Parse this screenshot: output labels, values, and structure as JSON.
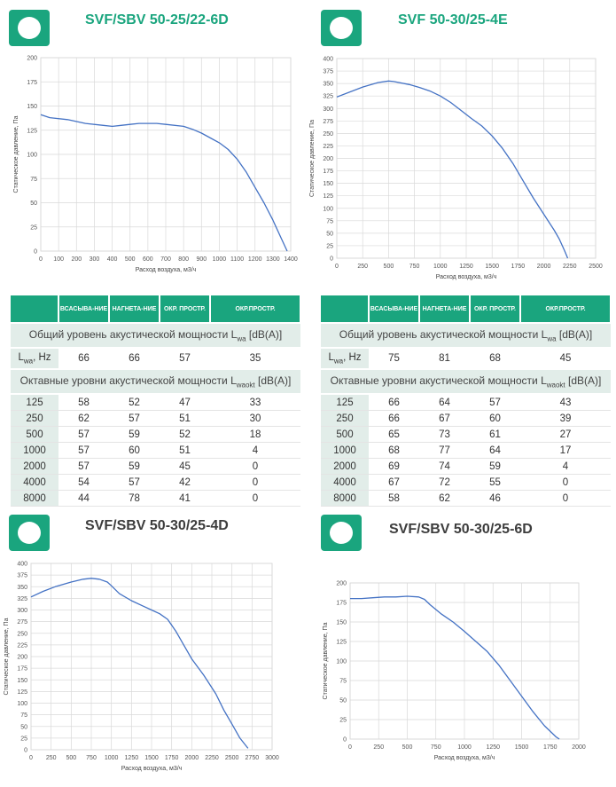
{
  "panels": [
    {
      "title": "SVF/SBV 50-25/22-6D",
      "title_style": "teal",
      "chart_data": {
        "type": "line",
        "xlabel": "Расход воздуха, м3/ч",
        "ylabel": "Статическое давление, Па",
        "xlim": [
          0,
          1400
        ],
        "ylim": [
          0,
          200
        ],
        "xticks": [
          0,
          100,
          200,
          300,
          400,
          500,
          600,
          700,
          800,
          900,
          1000,
          1100,
          1200,
          1300,
          1400
        ],
        "yticks": [
          0,
          25,
          50,
          75,
          100,
          125,
          150,
          175,
          200
        ],
        "grid": true,
        "x": [
          0,
          50,
          150,
          250,
          350,
          400,
          450,
          500,
          550,
          650,
          700,
          800,
          850,
          900,
          950,
          1000,
          1050,
          1100,
          1150,
          1200,
          1250,
          1300,
          1350,
          1380
        ],
        "y": [
          141,
          138,
          136,
          132,
          130,
          129,
          130,
          131,
          132,
          132,
          131,
          129,
          126,
          122,
          117,
          112,
          105,
          95,
          82,
          66,
          50,
          32,
          12,
          0
        ]
      },
      "table": {
        "headers": [
          "ВСАСЫВА-НИЕ",
          "НАГНЕТА-НИЕ",
          "ОКР. ПРОСТР.",
          "ОКР.ПРОСТР."
        ],
        "total_label": "Общий уровень акустической мощности L",
        "total_sub": "wa",
        "total_suffix": " [dB(A)]",
        "lwa_label": "L",
        "lwa_sub": "wa",
        "lwa_suffix": ", Hz",
        "lwa_values": [
          "66",
          "66",
          "57",
          "35"
        ],
        "octave_label": "Октавные уровни акустической мощности L",
        "octave_sub": "waokt",
        "octave_suffix": " [dB(A)]",
        "rows": [
          [
            "125",
            "58",
            "52",
            "47",
            "33"
          ],
          [
            "250",
            "62",
            "57",
            "51",
            "30"
          ],
          [
            "500",
            "57",
            "59",
            "52",
            "18"
          ],
          [
            "1000",
            "57",
            "60",
            "51",
            "4"
          ],
          [
            "2000",
            "57",
            "59",
            "45",
            "0"
          ],
          [
            "4000",
            "54",
            "57",
            "42",
            "0"
          ],
          [
            "8000",
            "44",
            "78",
            "41",
            "0"
          ]
        ]
      }
    },
    {
      "title": "SVF 50-30/25-4E",
      "title_style": "teal",
      "chart_data": {
        "type": "line",
        "xlabel": "Расход воздуха, м3/ч",
        "ylabel": "Статическое давление, Па",
        "xlim": [
          0,
          2500
        ],
        "ylim": [
          0,
          400
        ],
        "xticks": [
          0,
          250,
          500,
          750,
          1000,
          1250,
          1500,
          1750,
          2000,
          2250,
          2500
        ],
        "yticks": [
          0,
          25,
          50,
          75,
          100,
          125,
          150,
          175,
          200,
          225,
          250,
          275,
          300,
          325,
          350,
          375,
          400
        ],
        "grid": true,
        "x": [
          0,
          250,
          400,
          500,
          550,
          700,
          800,
          900,
          1000,
          1100,
          1200,
          1300,
          1400,
          1500,
          1600,
          1700,
          1800,
          1900,
          2000,
          2100,
          2150,
          2200,
          2230
        ],
        "y": [
          323,
          343,
          352,
          355,
          354,
          348,
          342,
          335,
          325,
          312,
          296,
          280,
          265,
          245,
          220,
          190,
          155,
          120,
          88,
          56,
          38,
          15,
          0
        ]
      },
      "table": {
        "headers": [
          "ВСАСЫВА-НИЕ",
          "НАГНЕТА-НИЕ",
          "ОКР. ПРОСТР.",
          "ОКР.ПРОСТР."
        ],
        "total_label": "Общий уровень акустической мощности L",
        "total_sub": "wa",
        "total_suffix": " [dB(A)]",
        "lwa_label": "L",
        "lwa_sub": "wa",
        "lwa_suffix": ", Hz",
        "lwa_values": [
          "75",
          "81",
          "68",
          "45"
        ],
        "octave_label": "Октавные уровни акустической мощности L",
        "octave_sub": "waokt",
        "octave_suffix": " [dB(A)]",
        "rows": [
          [
            "125",
            "66",
            "64",
            "57",
            "43"
          ],
          [
            "250",
            "66",
            "67",
            "60",
            "39"
          ],
          [
            "500",
            "65",
            "73",
            "61",
            "27"
          ],
          [
            "1000",
            "68",
            "77",
            "64",
            "17"
          ],
          [
            "2000",
            "69",
            "74",
            "59",
            "4"
          ],
          [
            "4000",
            "67",
            "72",
            "55",
            "0"
          ],
          [
            "8000",
            "58",
            "62",
            "46",
            "0"
          ]
        ]
      }
    },
    {
      "title": "SVF/SBV 50-30/25-4D",
      "title_style": "dark",
      "chart_data": {
        "type": "line",
        "xlabel": "Расход воздуха, м3/ч",
        "ylabel": "Статическое давление, Па",
        "xlim": [
          0,
          3000
        ],
        "ylim": [
          0,
          400
        ],
        "xticks": [
          0,
          250,
          500,
          750,
          1000,
          1250,
          1500,
          1750,
          2000,
          2250,
          2500,
          2750,
          3000
        ],
        "yticks": [
          0,
          25,
          50,
          75,
          100,
          125,
          150,
          175,
          200,
          225,
          250,
          275,
          300,
          325,
          350,
          375,
          400
        ],
        "grid": true,
        "x": [
          0,
          150,
          300,
          500,
          650,
          750,
          850,
          950,
          1000,
          1100,
          1250,
          1400,
          1500,
          1600,
          1700,
          1800,
          1900,
          2000,
          2150,
          2300,
          2400,
          2500,
          2600,
          2700
        ],
        "y": [
          328,
          340,
          350,
          360,
          366,
          368,
          366,
          360,
          352,
          335,
          320,
          308,
          300,
          292,
          280,
          255,
          225,
          195,
          160,
          120,
          85,
          55,
          25,
          3
        ]
      }
    },
    {
      "title": "SVF/SBV 50-30/25-6D",
      "title_style": "dark",
      "chart_data": {
        "type": "line",
        "xlabel": "Расход воздуха, м3/ч",
        "ylabel": "Статическое давление, Па",
        "xlim": [
          0,
          2000
        ],
        "ylim": [
          0,
          200
        ],
        "xticks": [
          0,
          250,
          500,
          750,
          1000,
          1250,
          1500,
          1750,
          2000
        ],
        "yticks": [
          0,
          25,
          50,
          75,
          100,
          125,
          150,
          175,
          200
        ],
        "grid": true,
        "x": [
          0,
          100,
          200,
          300,
          400,
          500,
          600,
          650,
          700,
          800,
          900,
          1000,
          1100,
          1200,
          1300,
          1400,
          1500,
          1600,
          1700,
          1800,
          1830
        ],
        "y": [
          180,
          180,
          181,
          182,
          182,
          183,
          182,
          179,
          172,
          160,
          150,
          138,
          125,
          112,
          95,
          75,
          55,
          35,
          17,
          3,
          0
        ]
      }
    }
  ]
}
